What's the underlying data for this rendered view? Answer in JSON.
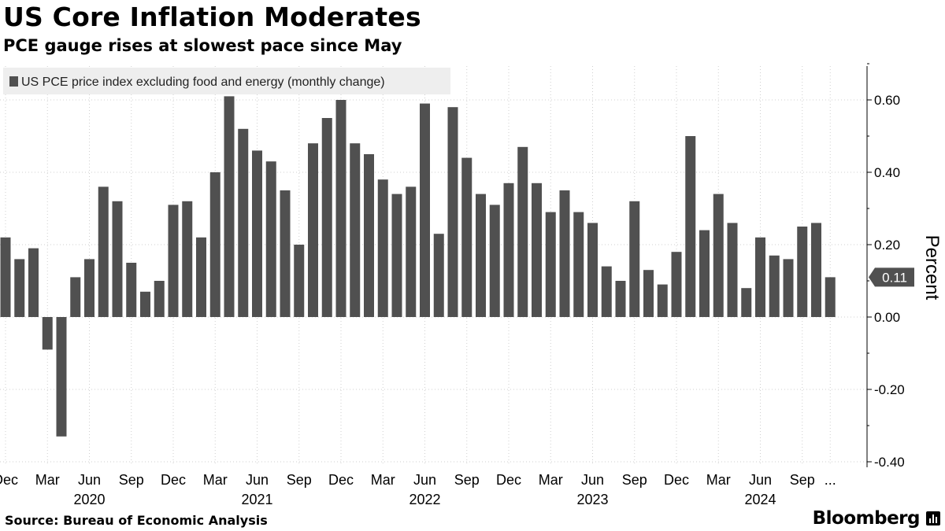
{
  "title": "US Core Inflation Moderates",
  "subtitle": "PCE gauge rises at slowest pace since May",
  "source": "Source: Bureau of Economic Analysis",
  "brand": "Bloomberg",
  "colors": {
    "bar": "#505050",
    "grid": "#cfcfcf",
    "legend_bg": "#eeeeee",
    "callout_bg": "#505050"
  },
  "chart_data": {
    "type": "bar",
    "legend": "US PCE price index excluding food and energy (monthly change)",
    "legend_position": "top-left",
    "ylabel": "Percent",
    "ylim": [
      -0.42,
      0.7
    ],
    "yticks": [
      0.6,
      0.4,
      0.2,
      0.0,
      -0.2,
      -0.4
    ],
    "ytick_labels": [
      "0.60",
      "0.40",
      "0.20",
      "0.00",
      "-0.20",
      "-0.40"
    ],
    "grid": true,
    "y_axis_side": "right",
    "last_value_label": "0.11",
    "x_tick_labels": [
      {
        "label": "Dec",
        "index": 0
      },
      {
        "label": "Mar",
        "index": 3
      },
      {
        "label": "Jun",
        "index": 6
      },
      {
        "label": "Sep",
        "index": 9
      },
      {
        "label": "Dec",
        "index": 12
      },
      {
        "label": "Mar",
        "index": 15
      },
      {
        "label": "Jun",
        "index": 18
      },
      {
        "label": "Sep",
        "index": 21
      },
      {
        "label": "Dec",
        "index": 24
      },
      {
        "label": "Mar",
        "index": 27
      },
      {
        "label": "Jun",
        "index": 30
      },
      {
        "label": "Sep",
        "index": 33
      },
      {
        "label": "Dec",
        "index": 36
      },
      {
        "label": "Mar",
        "index": 39
      },
      {
        "label": "Jun",
        "index": 42
      },
      {
        "label": "Sep",
        "index": 45
      },
      {
        "label": "Dec",
        "index": 48
      },
      {
        "label": "Mar",
        "index": 51
      },
      {
        "label": "Jun",
        "index": 54
      },
      {
        "label": "Sep",
        "index": 57
      },
      {
        "label": "...",
        "index": 59
      }
    ],
    "year_labels": [
      {
        "label": "2020",
        "index": 6
      },
      {
        "label": "2021",
        "index": 18
      },
      {
        "label": "2022",
        "index": 30
      },
      {
        "label": "2023",
        "index": 42
      },
      {
        "label": "2024",
        "index": 54
      }
    ],
    "x": [
      "Dec 2019",
      "Jan 2020",
      "Feb 2020",
      "Mar 2020",
      "Apr 2020",
      "May 2020",
      "Jun 2020",
      "Jul 2020",
      "Aug 2020",
      "Sep 2020",
      "Oct 2020",
      "Nov 2020",
      "Dec 2020",
      "Jan 2021",
      "Feb 2021",
      "Mar 2021",
      "Apr 2021",
      "May 2021",
      "Jun 2021",
      "Jul 2021",
      "Aug 2021",
      "Sep 2021",
      "Oct 2021",
      "Nov 2021",
      "Dec 2021",
      "Jan 2022",
      "Feb 2022",
      "Mar 2022",
      "Apr 2022",
      "May 2022",
      "Jun 2022",
      "Jul 2022",
      "Aug 2022",
      "Sep 2022",
      "Oct 2022",
      "Nov 2022",
      "Dec 2022",
      "Jan 2023",
      "Feb 2023",
      "Mar 2023",
      "Apr 2023",
      "May 2023",
      "Jun 2023",
      "Jul 2023",
      "Aug 2023",
      "Sep 2023",
      "Oct 2023",
      "Nov 2023",
      "Dec 2023",
      "Jan 2024",
      "Feb 2024",
      "Mar 2024",
      "Apr 2024",
      "May 2024",
      "Jun 2024",
      "Jul 2024",
      "Aug 2024",
      "Sep 2024",
      "Oct 2024",
      "Nov 2024"
    ],
    "values": [
      0.22,
      0.16,
      0.19,
      -0.09,
      -0.33,
      0.11,
      0.16,
      0.36,
      0.32,
      0.15,
      0.07,
      0.1,
      0.31,
      0.32,
      0.22,
      0.4,
      0.61,
      0.52,
      0.46,
      0.43,
      0.35,
      0.2,
      0.48,
      0.55,
      0.6,
      0.48,
      0.45,
      0.38,
      0.34,
      0.36,
      0.59,
      0.23,
      0.58,
      0.44,
      0.34,
      0.31,
      0.37,
      0.47,
      0.37,
      0.29,
      0.35,
      0.29,
      0.26,
      0.14,
      0.1,
      0.32,
      0.13,
      0.09,
      0.18,
      0.5,
      0.24,
      0.34,
      0.26,
      0.08,
      0.22,
      0.17,
      0.16,
      0.25,
      0.26,
      0.11
    ]
  }
}
